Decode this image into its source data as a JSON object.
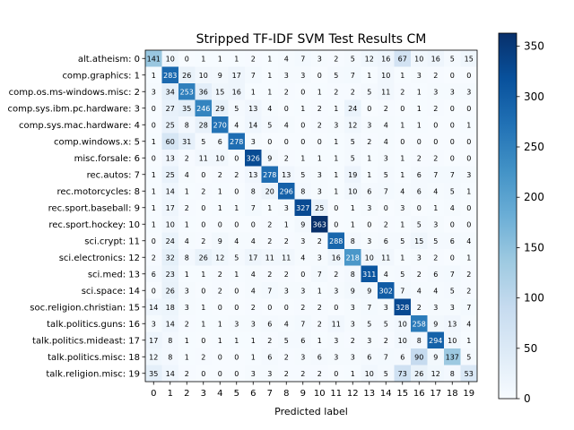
{
  "chart_data": {
    "type": "heatmap",
    "title": "Stripped TF-IDF SVM Test Results CM",
    "xlabel": "Predicted label",
    "ylabel": "",
    "row_labels": [
      "alt.atheism: 0",
      "comp.graphics: 1",
      "comp.os.ms-windows.misc: 2",
      "comp.sys.ibm.pc.hardware: 3",
      "comp.sys.mac.hardware: 4",
      "comp.windows.x: 5",
      "misc.forsale: 6",
      "rec.autos: 7",
      "rec.motorcycles: 8",
      "rec.sport.baseball: 9",
      "rec.sport.hockey: 10",
      "sci.crypt: 11",
      "sci.electronics: 12",
      "sci.med: 13",
      "sci.space: 14",
      "soc.religion.christian: 15",
      "talk.politics.guns: 16",
      "talk.politics.mideast: 17",
      "talk.politics.misc: 18",
      "talk.religion.misc: 19"
    ],
    "col_labels": [
      "0",
      "1",
      "2",
      "3",
      "4",
      "5",
      "6",
      "7",
      "8",
      "9",
      "10",
      "11",
      "12",
      "13",
      "14",
      "15",
      "16",
      "17",
      "18",
      "19"
    ],
    "matrix": [
      [
        141,
        10,
        0,
        1,
        1,
        1,
        2,
        1,
        4,
        7,
        3,
        2,
        5,
        12,
        16,
        67,
        10,
        16,
        5,
        15
      ],
      [
        1,
        283,
        26,
        10,
        9,
        17,
        7,
        1,
        3,
        3,
        0,
        5,
        7,
        1,
        10,
        1,
        3,
        2,
        0,
        0
      ],
      [
        3,
        34,
        253,
        36,
        15,
        16,
        1,
        1,
        2,
        0,
        1,
        2,
        2,
        5,
        11,
        2,
        1,
        3,
        3,
        3
      ],
      [
        0,
        27,
        35,
        246,
        29,
        5,
        13,
        4,
        0,
        1,
        2,
        1,
        24,
        0,
        2,
        0,
        1,
        2,
        0,
        0
      ],
      [
        0,
        25,
        8,
        28,
        270,
        4,
        14,
        5,
        4,
        0,
        2,
        3,
        12,
        3,
        4,
        1,
        1,
        0,
        0,
        1
      ],
      [
        1,
        60,
        31,
        5,
        6,
        278,
        3,
        0,
        0,
        0,
        0,
        1,
        5,
        2,
        4,
        0,
        0,
        0,
        0,
        0
      ],
      [
        0,
        13,
        2,
        11,
        10,
        0,
        326,
        9,
        2,
        1,
        1,
        1,
        5,
        1,
        3,
        1,
        2,
        2,
        0,
        0
      ],
      [
        1,
        25,
        4,
        0,
        2,
        2,
        13,
        278,
        13,
        5,
        3,
        1,
        19,
        1,
        5,
        1,
        6,
        7,
        7,
        3
      ],
      [
        1,
        14,
        1,
        2,
        1,
        0,
        8,
        20,
        296,
        8,
        3,
        1,
        10,
        6,
        7,
        4,
        6,
        4,
        5,
        1
      ],
      [
        1,
        17,
        2,
        0,
        1,
        1,
        7,
        1,
        3,
        327,
        25,
        0,
        1,
        3,
        0,
        3,
        0,
        1,
        4,
        0
      ],
      [
        1,
        10,
        1,
        0,
        0,
        0,
        0,
        2,
        1,
        9,
        363,
        0,
        1,
        0,
        2,
        1,
        5,
        3,
        0,
        0
      ],
      [
        0,
        24,
        4,
        2,
        9,
        4,
        4,
        2,
        2,
        3,
        2,
        288,
        8,
        3,
        6,
        5,
        15,
        5,
        6,
        4
      ],
      [
        2,
        32,
        8,
        26,
        12,
        5,
        17,
        11,
        11,
        4,
        3,
        16,
        218,
        10,
        11,
        1,
        3,
        2,
        0,
        1
      ],
      [
        6,
        23,
        1,
        1,
        2,
        1,
        4,
        2,
        2,
        0,
        7,
        2,
        8,
        311,
        4,
        5,
        2,
        6,
        7,
        2
      ],
      [
        0,
        26,
        3,
        0,
        2,
        0,
        4,
        7,
        3,
        3,
        1,
        3,
        9,
        9,
        302,
        7,
        4,
        4,
        5,
        2
      ],
      [
        14,
        18,
        3,
        1,
        0,
        0,
        2,
        0,
        0,
        2,
        2,
        0,
        3,
        7,
        3,
        328,
        2,
        3,
        3,
        7
      ],
      [
        3,
        14,
        2,
        1,
        1,
        3,
        3,
        6,
        4,
        7,
        2,
        11,
        3,
        5,
        5,
        10,
        258,
        9,
        13,
        4
      ],
      [
        17,
        8,
        1,
        0,
        1,
        1,
        1,
        2,
        5,
        6,
        1,
        3,
        2,
        3,
        2,
        10,
        8,
        294,
        10,
        1
      ],
      [
        12,
        8,
        1,
        2,
        0,
        0,
        1,
        6,
        2,
        3,
        6,
        3,
        3,
        6,
        7,
        6,
        90,
        9,
        137,
        5
      ],
      [
        35,
        14,
        2,
        0,
        0,
        0,
        3,
        3,
        2,
        2,
        2,
        0,
        1,
        10,
        5,
        73,
        26,
        12,
        8,
        53
      ]
    ],
    "colorbar": {
      "min": 0,
      "max": 363,
      "ticks": [
        0,
        50,
        100,
        150,
        200,
        250,
        300,
        350
      ],
      "colormap": "Blues"
    }
  }
}
